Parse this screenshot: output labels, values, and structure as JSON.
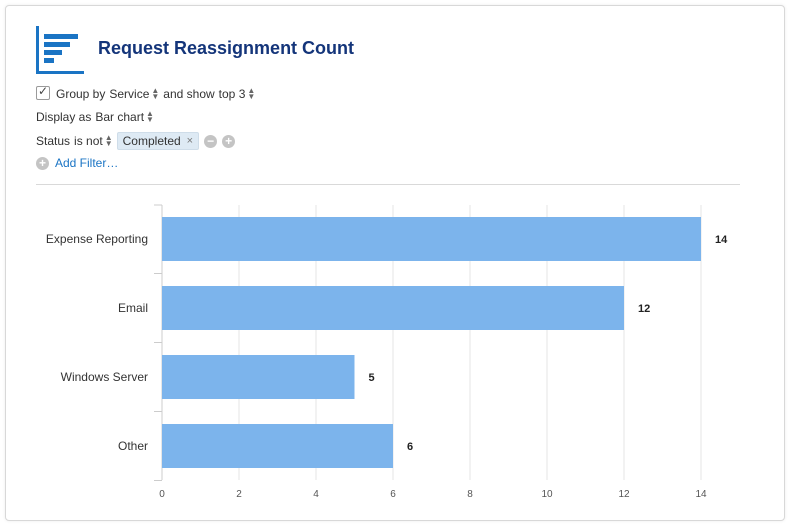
{
  "widget": {
    "title": "Request Reassignment Count",
    "logo_icon": "bar-chart-icon"
  },
  "controls": {
    "group_checked": true,
    "group_by_prefix": "Group by",
    "group_by_value": "Service",
    "show_top_prefix": "and show",
    "show_top_value": "top 3",
    "display_prefix": "Display as",
    "display_value": "Bar chart",
    "filter_field": "Status",
    "filter_operator": "is not",
    "filter_value": "Completed",
    "filter_remove": "×",
    "add_filter_label": "Add Filter…"
  },
  "chart_data": {
    "type": "bar",
    "orientation": "horizontal",
    "categories": [
      "Expense Reporting",
      "Email",
      "Windows Server",
      "Other"
    ],
    "values": [
      14,
      12,
      5,
      6
    ],
    "xlim": [
      0,
      15
    ],
    "xticks": [
      0,
      2,
      4,
      6,
      8,
      10,
      12,
      14
    ],
    "grid": true,
    "bar_color": "#7cb4ec",
    "data_labels": true
  }
}
